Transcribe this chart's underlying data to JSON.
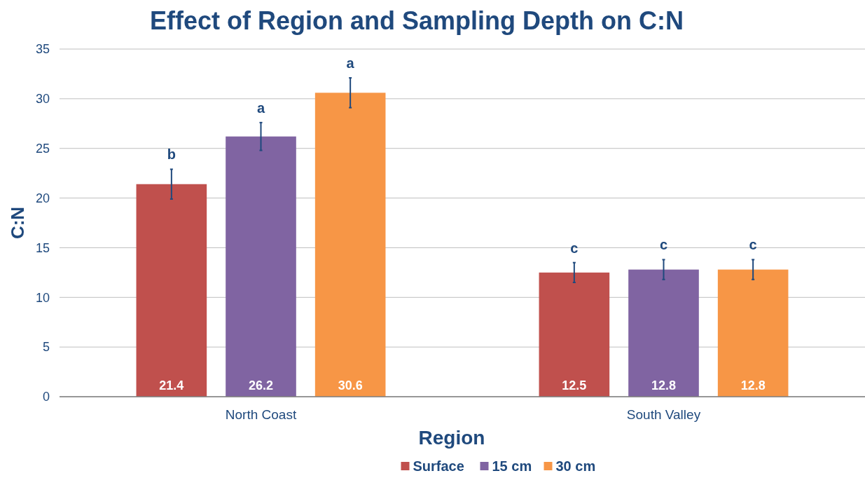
{
  "chart_data": {
    "type": "bar",
    "title": "Effect of Region and Sampling Depth on C:N",
    "xlabel": "Region",
    "ylabel": "C:N",
    "categories": [
      "North Coast",
      "South Valley"
    ],
    "series": [
      {
        "name": "Surface",
        "color": "#c0504d",
        "values": [
          21.4,
          12.5
        ],
        "errors": [
          1.5,
          1.0
        ]
      },
      {
        "name": "15 cm",
        "color": "#8064a2",
        "values": [
          26.2,
          12.8
        ],
        "errors": [
          1.4,
          1.0
        ]
      },
      {
        "name": "30 cm",
        "color": "#f79646",
        "values": [
          30.6,
          12.8
        ],
        "errors": [
          1.5,
          1.0
        ]
      }
    ],
    "ylim": [
      0,
      35
    ],
    "yticks": [
      0,
      5,
      10,
      15,
      20,
      25,
      30,
      35
    ],
    "grid": "y",
    "legend": "bottom",
    "data_labels": true,
    "annotations": [
      "b",
      "a",
      "a",
      "c",
      "c",
      "c"
    ]
  }
}
